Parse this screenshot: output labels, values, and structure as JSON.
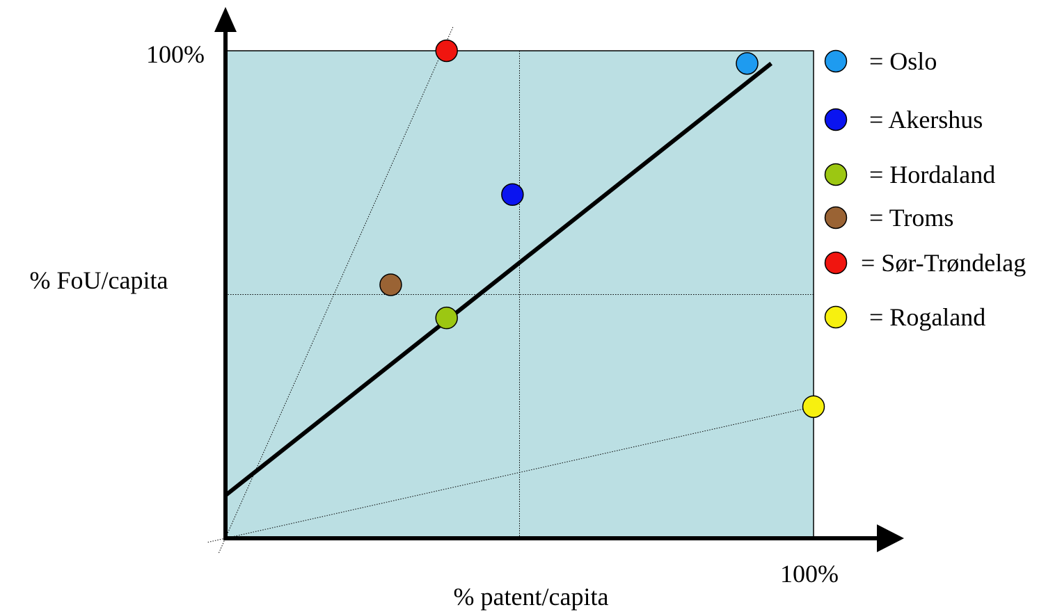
{
  "chart_data": {
    "type": "scatter",
    "title": "",
    "xlabel": "% patent/capita",
    "ylabel": "% FoU/capita",
    "xlim": [
      0,
      100
    ],
    "ylim": [
      0,
      100
    ],
    "x_max_label": "100%",
    "y_max_label": "100%",
    "grid": "dotted cross at 50% on both axes",
    "plot_background": "#bbdfe3",
    "points": [
      {
        "label": "Oslo",
        "legend_text": "= Oslo",
        "x": 88.7,
        "y": 97.4,
        "color": "#1e9bf0"
      },
      {
        "label": "Akershus",
        "legend_text": "= Akershus",
        "x": 48.8,
        "y": 70.5,
        "color": "#0a14f0"
      },
      {
        "label": "Hordaland",
        "legend_text": "= Hordaland",
        "x": 37.6,
        "y": 45.2,
        "color": "#9cc712"
      },
      {
        "label": "Troms",
        "legend_text": "= Troms",
        "x": 28.1,
        "y": 52.0,
        "color": "#9a6334"
      },
      {
        "label": "Sør-Trøndelag",
        "legend_text": "= Sør-Trøndelag",
        "x": 37.6,
        "y": 100,
        "color": "#f0150f"
      },
      {
        "label": "Rogaland",
        "legend_text": "= Rogaland",
        "x": 100,
        "y": 27.0,
        "color": "#f7f00f"
      }
    ],
    "trend_line": {
      "from": [
        0,
        8.8
      ],
      "to": [
        92.8,
        97.4
      ],
      "color": "#000000"
    },
    "guide_lines": [
      {
        "from": [
          0,
          0
        ],
        "to": [
          37.6,
          100
        ],
        "style": "dotted"
      },
      {
        "from": [
          0,
          0
        ],
        "to": [
          100,
          27.0
        ],
        "style": "dotted"
      }
    ],
    "legend": {
      "position": "right"
    }
  }
}
